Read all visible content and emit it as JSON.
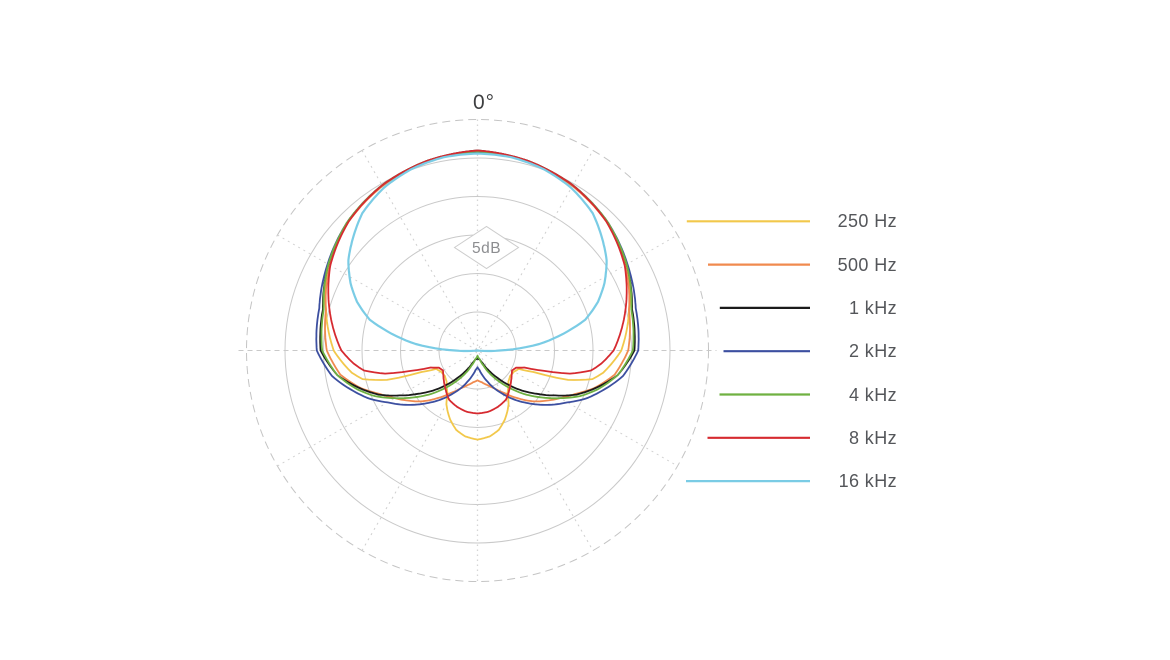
{
  "page": {
    "background": "#ffffff"
  },
  "chart_data": {
    "type": "polar-line",
    "title": "",
    "description": "Microphone directivity polar pattern, attenuation vs angle for seven frequencies",
    "angle_label_top": "0°",
    "radial_scale_label": "5dB",
    "angle_unit": "degrees from on-axis (0° at top), pattern mirrored left/right",
    "value_unit": "attenuation in dB relative to on-axis level",
    "grid": {
      "solid_rings": 5,
      "ring_step_db": 5,
      "outer_ring_style": "dashed",
      "radial_lines_every_deg": 30,
      "grid_color": "#c9c9c9"
    },
    "legend_position": "right",
    "series": [
      {
        "id": "250hz",
        "label": "250 Hz",
        "color": "#F2C84B",
        "points": [
          [
            0,
            0.1
          ],
          [
            15,
            0.5
          ],
          [
            30,
            1.2
          ],
          [
            45,
            2.2
          ],
          [
            60,
            3.6
          ],
          [
            75,
            5.6
          ],
          [
            90,
            7.3
          ],
          [
            100,
            9.4
          ],
          [
            104,
            10.6
          ],
          [
            108,
            13.6
          ],
          [
            111,
            18.2
          ],
          [
            114,
            20.1
          ],
          [
            120,
            20.5
          ],
          [
            128,
            20.6
          ],
          [
            135,
            20.3
          ],
          [
            145,
            19.2
          ],
          [
            150,
            17.9
          ],
          [
            158,
            16.4
          ],
          [
            165,
            15.3
          ],
          [
            172,
            14.7
          ],
          [
            180,
            14.4
          ]
        ]
      },
      {
        "id": "500hz",
        "label": "500 Hz",
        "color": "#F08A4F",
        "points": [
          [
            0,
            0.1
          ],
          [
            15,
            0.5
          ],
          [
            30,
            1.3
          ],
          [
            45,
            2.3
          ],
          [
            60,
            3.8
          ],
          [
            75,
            5.6
          ],
          [
            90,
            6.4
          ],
          [
            100,
            7.9
          ],
          [
            108,
            10.1
          ],
          [
            114,
            12.1
          ],
          [
            120,
            13.6
          ],
          [
            126,
            14.9
          ],
          [
            132,
            16.1
          ],
          [
            140,
            17.9
          ],
          [
            148,
            19.5
          ],
          [
            156,
            20.6
          ],
          [
            164,
            21.3
          ],
          [
            172,
            21.8
          ],
          [
            180,
            22.1
          ]
        ]
      },
      {
        "id": "1khz",
        "label": "1 kHz",
        "color": "#1b1b1b",
        "points": [
          [
            0,
            0
          ],
          [
            15,
            0.5
          ],
          [
            30,
            1.2
          ],
          [
            45,
            2.2
          ],
          [
            60,
            3.6
          ],
          [
            75,
            5.2
          ],
          [
            90,
            5.6
          ],
          [
            100,
            7.5
          ],
          [
            108,
            10.0
          ],
          [
            114,
            11.9
          ],
          [
            120,
            14.3
          ],
          [
            126,
            16.4
          ],
          [
            132,
            18.2
          ],
          [
            138,
            20.0
          ],
          [
            144,
            21.6
          ],
          [
            150,
            22.9
          ],
          [
            158,
            24.2
          ],
          [
            166,
            24.8
          ],
          [
            180,
            24.9
          ]
        ]
      },
      {
        "id": "2khz",
        "label": "2 kHz",
        "color": "#3C4FA0",
        "points": [
          [
            0,
            0.2
          ],
          [
            15,
            0.5
          ],
          [
            30,
            1.2
          ],
          [
            45,
            2.2
          ],
          [
            60,
            3.5
          ],
          [
            75,
            4.7
          ],
          [
            90,
            5.1
          ],
          [
            100,
            6.8
          ],
          [
            108,
            9.0
          ],
          [
            114,
            10.6
          ],
          [
            120,
            12.5
          ],
          [
            126,
            14.0
          ],
          [
            132,
            15.5
          ],
          [
            138,
            16.9
          ],
          [
            144,
            18.2
          ],
          [
            150,
            19.5
          ],
          [
            156,
            20.6
          ],
          [
            162,
            21.7
          ],
          [
            168,
            22.6
          ],
          [
            174,
            23.4
          ],
          [
            180,
            23.8
          ]
        ]
      },
      {
        "id": "4khz",
        "label": "4 kHz",
        "color": "#6FB142",
        "points": [
          [
            0,
            0.1
          ],
          [
            15,
            0.5
          ],
          [
            30,
            1.2
          ],
          [
            45,
            2.2
          ],
          [
            60,
            3.6
          ],
          [
            75,
            5.3
          ],
          [
            90,
            5.8
          ],
          [
            100,
            7.5
          ],
          [
            108,
            9.6
          ],
          [
            114,
            11.4
          ],
          [
            120,
            13.6
          ],
          [
            126,
            15.6
          ],
          [
            132,
            17.4
          ],
          [
            138,
            19.2
          ],
          [
            144,
            20.8
          ],
          [
            150,
            22.2
          ],
          [
            158,
            23.8
          ],
          [
            166,
            24.8
          ],
          [
            180,
            25.3
          ]
        ]
      },
      {
        "id": "8khz",
        "label": "8 kHz",
        "color": "#D62A30",
        "points": [
          [
            0,
            0
          ],
          [
            15,
            0.5
          ],
          [
            30,
            1.2
          ],
          [
            45,
            2.3
          ],
          [
            60,
            3.9
          ],
          [
            75,
            6.1
          ],
          [
            90,
            8.3
          ],
          [
            96,
            9.8
          ],
          [
            100,
            11.0
          ],
          [
            104,
            13.6
          ],
          [
            107,
            16.9
          ],
          [
            110,
            19.5
          ],
          [
            114,
            20.5
          ],
          [
            120,
            20.8
          ],
          [
            126,
            20.5
          ],
          [
            132,
            20.1
          ],
          [
            140,
            19.5
          ],
          [
            150,
            18.6
          ],
          [
            160,
            18.2
          ],
          [
            170,
            17.9
          ],
          [
            180,
            17.8
          ]
        ]
      },
      {
        "id": "16khz",
        "label": "16 kHz",
        "color": "#7ACCE5",
        "points": [
          [
            0,
            0.4
          ],
          [
            10,
            0.5
          ],
          [
            20,
            0.9
          ],
          [
            30,
            1.6
          ],
          [
            40,
            2.7
          ],
          [
            48,
            4.2
          ],
          [
            55,
            5.5
          ],
          [
            62,
            7.3
          ],
          [
            68,
            9.1
          ],
          [
            74,
            11.4
          ],
          [
            80,
            15.3
          ],
          [
            84,
            17.9
          ],
          [
            87,
            20.5
          ],
          [
            90,
            23.1
          ],
          [
            94,
            25.2
          ],
          [
            97,
            26
          ],
          [
            180,
            26
          ]
        ]
      }
    ]
  }
}
